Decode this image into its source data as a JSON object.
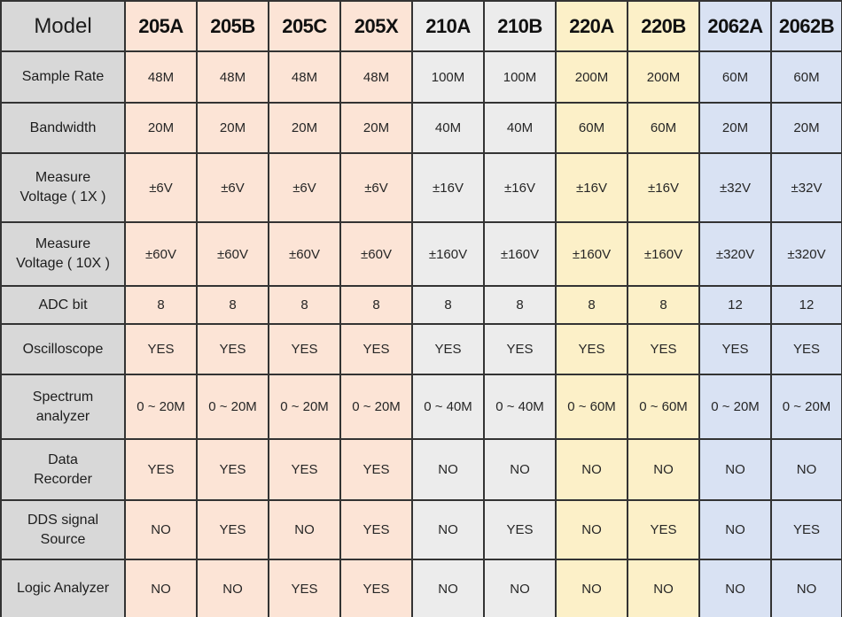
{
  "chart_data": {
    "type": "table",
    "columns": [
      "Model",
      "205A",
      "205B",
      "205C",
      "205X",
      "210A",
      "210B",
      "220A",
      "220B",
      "2062A",
      "2062B"
    ],
    "column_colors": [
      "#d8d8d8",
      "#fce4d6",
      "#fce4d6",
      "#fce4d6",
      "#fce4d6",
      "#ececec",
      "#ececec",
      "#fcf0c8",
      "#fcf0c8",
      "#d9e2f3",
      "#d9e2f3"
    ],
    "grid_color": "#333333",
    "label_column_color": "#d8d8d8",
    "rows": [
      {
        "label": "Sample Rate",
        "label_lines": [
          "Sample Rate"
        ],
        "values": [
          "48M",
          "48M",
          "48M",
          "48M",
          "100M",
          "100M",
          "200M",
          "200M",
          "60M",
          "60M"
        ]
      },
      {
        "label": "Bandwidth",
        "label_lines": [
          "Bandwidth"
        ],
        "values": [
          "20M",
          "20M",
          "20M",
          "20M",
          "40M",
          "40M",
          "60M",
          "60M",
          "20M",
          "20M"
        ]
      },
      {
        "label": "Measure Voltage ( 1X )",
        "label_lines": [
          "Measure",
          "Voltage ( 1X )"
        ],
        "values": [
          "±6V",
          "±6V",
          "±6V",
          "±6V",
          "±16V",
          "±16V",
          "±16V",
          "±16V",
          "±32V",
          "±32V"
        ]
      },
      {
        "label": "Measure Voltage ( 10X )",
        "label_lines": [
          "Measure",
          "Voltage ( 10X )"
        ],
        "values": [
          "±60V",
          "±60V",
          "±60V",
          "±60V",
          "±160V",
          "±160V",
          "±160V",
          "±160V",
          "±320V",
          "±320V"
        ]
      },
      {
        "label": "ADC bit",
        "label_lines": [
          "ADC bit"
        ],
        "values": [
          "8",
          "8",
          "8",
          "8",
          "8",
          "8",
          "8",
          "8",
          "12",
          "12"
        ]
      },
      {
        "label": "Oscilloscope",
        "label_lines": [
          "Oscilloscope"
        ],
        "values": [
          "YES",
          "YES",
          "YES",
          "YES",
          "YES",
          "YES",
          "YES",
          "YES",
          "YES",
          "YES"
        ]
      },
      {
        "label": "Spectrum analyzer",
        "label_lines": [
          "Spectrum",
          "analyzer"
        ],
        "values": [
          "0 ~ 20M",
          "0 ~ 20M",
          "0 ~ 20M",
          "0 ~ 20M",
          "0 ~ 40M",
          "0 ~ 40M",
          "0 ~ 60M",
          "0 ~ 60M",
          "0 ~ 20M",
          "0 ~ 20M"
        ]
      },
      {
        "label": "Data Recorder",
        "label_lines": [
          "Data",
          "Recorder"
        ],
        "values": [
          "YES",
          "YES",
          "YES",
          "YES",
          "NO",
          "NO",
          "NO",
          "NO",
          "NO",
          "NO"
        ]
      },
      {
        "label": "DDS signal Source",
        "label_lines": [
          "DDS signal",
          "Source"
        ],
        "values": [
          "NO",
          "YES",
          "NO",
          "YES",
          "NO",
          "YES",
          "NO",
          "YES",
          "NO",
          "YES"
        ]
      },
      {
        "label": "Logic Analyzer",
        "label_lines": [
          "Logic Analyzer"
        ],
        "values": [
          "NO",
          "NO",
          "YES",
          "YES",
          "NO",
          "NO",
          "NO",
          "NO",
          "NO",
          "NO"
        ]
      }
    ]
  }
}
